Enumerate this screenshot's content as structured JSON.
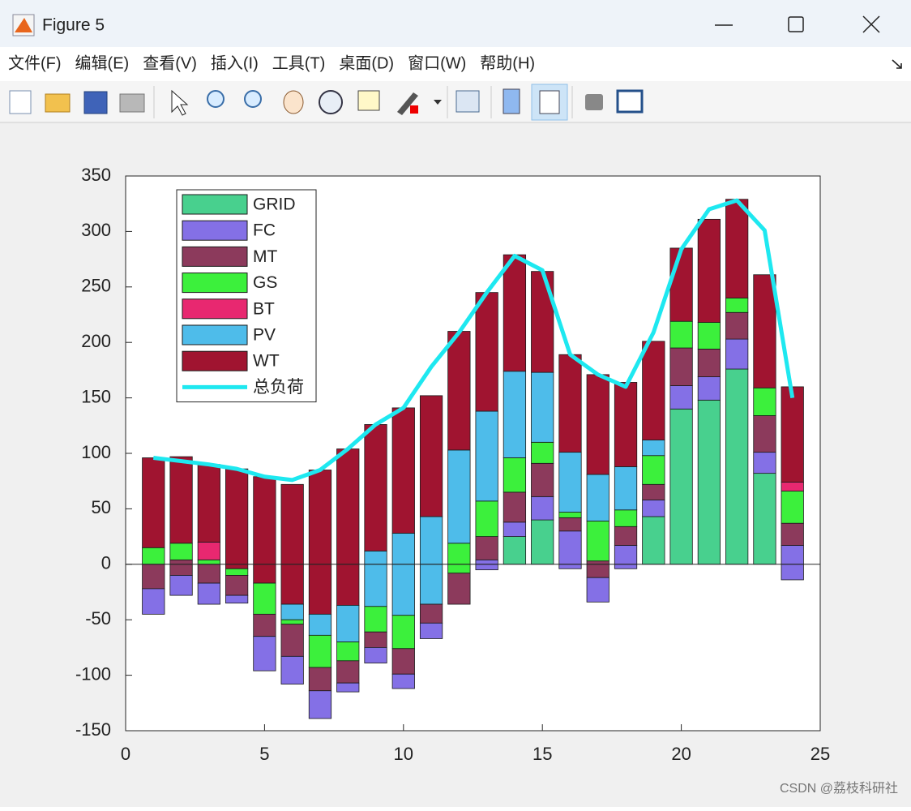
{
  "window": {
    "title": "Figure 5",
    "menu": [
      "文件(F)",
      "编辑(E)",
      "查看(V)",
      "插入(I)",
      "工具(T)",
      "桌面(D)",
      "窗口(W)",
      "帮助(H)"
    ],
    "watermark": "CSDN @荔枝科研社"
  },
  "chart_data": {
    "type": "bar",
    "stacked": true,
    "x": [
      1,
      2,
      3,
      4,
      5,
      6,
      7,
      8,
      9,
      10,
      11,
      12,
      13,
      14,
      15,
      16,
      17,
      18,
      19,
      20,
      21,
      22,
      23,
      24
    ],
    "xlim": [
      0,
      25
    ],
    "xticks": [
      0,
      5,
      10,
      15,
      20,
      25
    ],
    "ylim": [
      -150,
      350
    ],
    "yticks": [
      -150,
      -100,
      -50,
      0,
      50,
      100,
      150,
      200,
      250,
      300,
      350
    ],
    "legend_location": "northwest",
    "series": [
      {
        "name": "GRID",
        "color": "#48d08e",
        "values": [
          0,
          0,
          0,
          0,
          0,
          0,
          0,
          0,
          0,
          0,
          0,
          0,
          0,
          25,
          40,
          0,
          0,
          0,
          43,
          140,
          148,
          176,
          82,
          0
        ]
      },
      {
        "name": "FC",
        "color": "#8470e6",
        "values": [
          0,
          0,
          0,
          0,
          0,
          0,
          0,
          0,
          0,
          0,
          0,
          0,
          4,
          13,
          21,
          30,
          0,
          17,
          15,
          21,
          21,
          27,
          19,
          17
        ]
      },
      {
        "name": "MT",
        "color": "#8c3a5c",
        "values": [
          0,
          4,
          0,
          0,
          0,
          0,
          0,
          0,
          0,
          0,
          0,
          0,
          21,
          27,
          30,
          12,
          3,
          17,
          14,
          34,
          25,
          24,
          33,
          20
        ]
      },
      {
        "name": "GS",
        "color": "#3cf03c",
        "values": [
          15,
          15,
          4,
          0,
          0,
          0,
          0,
          0,
          0,
          0,
          0,
          19,
          32,
          31,
          19,
          5,
          36,
          15,
          26,
          24,
          24,
          13,
          25,
          29
        ]
      },
      {
        "name": "BT",
        "color": "#e82870",
        "values": [
          0,
          0,
          16,
          0,
          0,
          0,
          0,
          0,
          0,
          0,
          0,
          0,
          0,
          0,
          0,
          0,
          0,
          0,
          0,
          0,
          0,
          0,
          0,
          8
        ]
      },
      {
        "name": "PV",
        "color": "#4ebcea",
        "values": [
          0,
          0,
          0,
          0,
          0,
          0,
          0,
          0,
          12,
          28,
          43,
          84,
          81,
          78,
          63,
          54,
          42,
          39,
          14,
          0,
          0,
          0,
          0,
          0
        ]
      },
      {
        "name": "WT",
        "color": "#a01430",
        "values": [
          81,
          78,
          70,
          86,
          79,
          72,
          85,
          104,
          114,
          113,
          109,
          107,
          107,
          105,
          91,
          88,
          90,
          76,
          89,
          66,
          93,
          89,
          102,
          86
        ]
      },
      {
        "color": "#a01430",
        "values": [
          0,
          0,
          0,
          -4,
          -17,
          -36,
          -45,
          -37,
          0,
          0,
          0,
          0,
          0,
          0,
          0,
          0,
          0,
          0,
          0,
          0,
          0,
          0,
          0,
          0
        ]
      },
      {
        "color": "#4ebcea",
        "values": [
          0,
          0,
          0,
          0,
          0,
          -14,
          -19,
          -33,
          -38,
          -46,
          -36,
          0,
          0,
          0,
          0,
          0,
          0,
          0,
          0,
          0,
          0,
          0,
          0,
          0
        ]
      },
      {
        "color": "#3cf03c",
        "values": [
          0,
          0,
          0,
          -6,
          -28,
          -4,
          -29,
          -17,
          -23,
          -30,
          0,
          -8,
          0,
          0,
          0,
          0,
          0,
          0,
          0,
          0,
          0,
          0,
          0,
          0
        ]
      },
      {
        "color": "#8c3a5c",
        "values": [
          -22,
          -10,
          -17,
          -18,
          -20,
          -29,
          -21,
          -20,
          -14,
          -23,
          -17,
          -28,
          0,
          0,
          0,
          0,
          -12,
          0,
          0,
          0,
          0,
          0,
          0,
          0
        ]
      },
      {
        "color": "#8470e6",
        "values": [
          -23,
          -18,
          -19,
          -7,
          -31,
          -25,
          -25,
          -8,
          -14,
          -13,
          -14,
          0,
          -5,
          0,
          0,
          -4,
          -22,
          -4,
          0,
          0,
          0,
          0,
          0,
          -14
        ]
      }
    ],
    "lines": [
      {
        "name": "总负荷",
        "color": "#1ee8f0",
        "values": [
          96,
          93,
          90,
          86,
          79,
          76,
          85,
          104,
          126,
          141,
          178,
          209,
          245,
          278,
          265,
          189,
          171,
          160,
          209,
          284,
          320,
          328,
          301,
          150
        ]
      }
    ]
  }
}
